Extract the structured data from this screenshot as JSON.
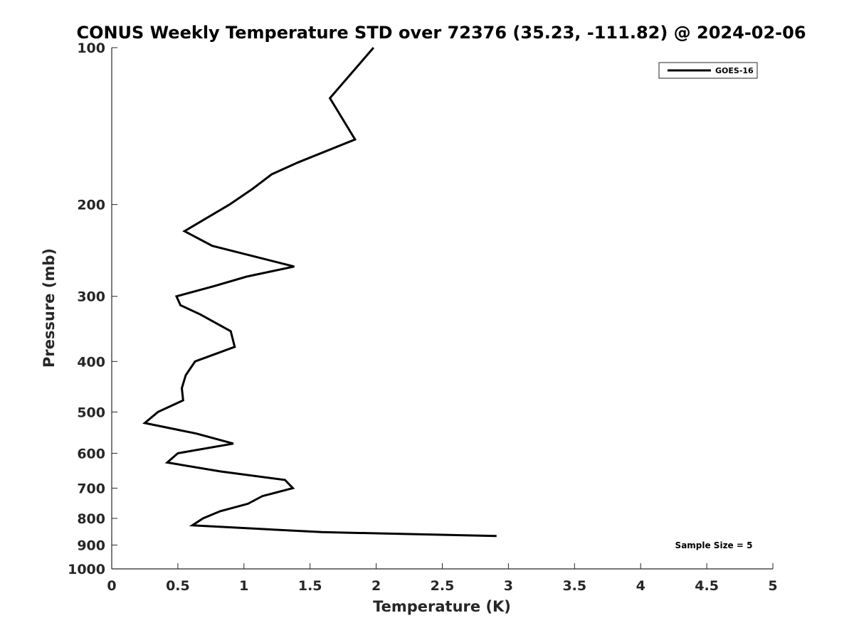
{
  "chart_data": {
    "type": "line",
    "title": "CONUS Weekly Temperature STD over 72376 (35.23, -111.82) @ 2024-02-06",
    "xlabel": "Temperature (K)",
    "ylabel": "Pressure (mb)",
    "xlim": [
      0,
      5
    ],
    "ylim": [
      1000,
      100
    ],
    "y_scale": "log",
    "y_reversed": true,
    "grid": false,
    "legend_position": "top-right",
    "x_ticks": [
      0,
      0.5,
      1,
      1.5,
      2,
      2.5,
      3,
      3.5,
      4,
      4.5,
      5
    ],
    "x_tick_labels": [
      "0",
      "0.5",
      "1",
      "1.5",
      "2",
      "2.5",
      "3",
      "3.5",
      "4",
      "4.5",
      "5"
    ],
    "y_ticks": [
      100,
      200,
      300,
      400,
      500,
      600,
      700,
      800,
      900,
      1000
    ],
    "y_tick_labels": [
      "100",
      "200",
      "300",
      "400",
      "500",
      "600",
      "700",
      "800",
      "900",
      "1000"
    ],
    "annotation": "Sample Size = 5",
    "series": [
      {
        "name": "GOES-16",
        "color": "#000000",
        "points": [
          {
            "x": 1.98,
            "y": 100
          },
          {
            "x": 1.65,
            "y": 125
          },
          {
            "x": 1.84,
            "y": 150
          },
          {
            "x": 1.41,
            "y": 166
          },
          {
            "x": 1.21,
            "y": 175
          },
          {
            "x": 1.06,
            "y": 187
          },
          {
            "x": 0.89,
            "y": 200
          },
          {
            "x": 0.55,
            "y": 225
          },
          {
            "x": 0.76,
            "y": 240
          },
          {
            "x": 1.38,
            "y": 263
          },
          {
            "x": 1.02,
            "y": 275
          },
          {
            "x": 0.77,
            "y": 287
          },
          {
            "x": 0.49,
            "y": 300
          },
          {
            "x": 0.52,
            "y": 312
          },
          {
            "x": 0.67,
            "y": 325
          },
          {
            "x": 0.9,
            "y": 350
          },
          {
            "x": 0.93,
            "y": 375
          },
          {
            "x": 0.63,
            "y": 400
          },
          {
            "x": 0.56,
            "y": 425
          },
          {
            "x": 0.53,
            "y": 450
          },
          {
            "x": 0.54,
            "y": 475
          },
          {
            "x": 0.35,
            "y": 500
          },
          {
            "x": 0.25,
            "y": 525
          },
          {
            "x": 0.64,
            "y": 550
          },
          {
            "x": 0.92,
            "y": 575
          },
          {
            "x": 0.5,
            "y": 600
          },
          {
            "x": 0.42,
            "y": 625
          },
          {
            "x": 0.82,
            "y": 650
          },
          {
            "x": 1.31,
            "y": 675
          },
          {
            "x": 1.37,
            "y": 700
          },
          {
            "x": 1.14,
            "y": 725
          },
          {
            "x": 1.03,
            "y": 750
          },
          {
            "x": 0.82,
            "y": 775
          },
          {
            "x": 0.69,
            "y": 800
          },
          {
            "x": 0.61,
            "y": 825
          },
          {
            "x": 1.59,
            "y": 850
          },
          {
            "x": 2.91,
            "y": 865
          }
        ]
      }
    ]
  }
}
